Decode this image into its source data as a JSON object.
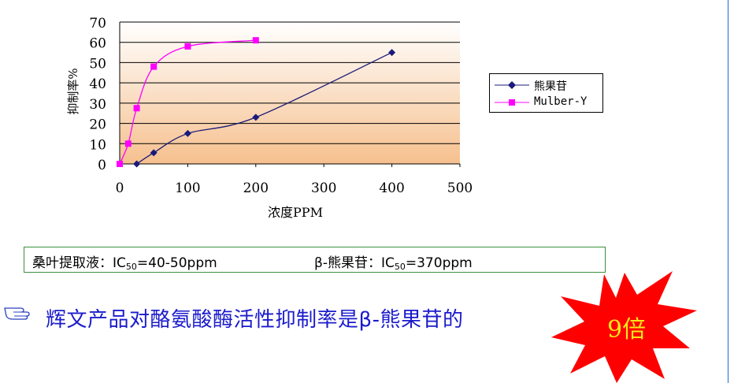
{
  "chart_data": {
    "type": "line",
    "title": "",
    "xlabel": "浓度PPM",
    "ylabel": "抑制率%",
    "xlim": [
      0,
      500
    ],
    "ylim": [
      0,
      70
    ],
    "xticks": [
      "0",
      "100",
      "200",
      "300",
      "400",
      "500"
    ],
    "yticks": [
      "0",
      "10",
      "20",
      "30",
      "40",
      "50",
      "60",
      "70"
    ],
    "grid": "horizontal",
    "legend_position": "right",
    "series": [
      {
        "name": "熊果苷",
        "color": "#1a1a7a",
        "marker": "diamond",
        "x": [
          25,
          50,
          100,
          200,
          400
        ],
        "y": [
          0,
          5.5,
          15,
          23,
          55
        ]
      },
      {
        "name": "Mulber-Y",
        "color": "#ff00ff",
        "marker": "square",
        "x": [
          0,
          12.5,
          25,
          50,
          100,
          200
        ],
        "y": [
          0,
          10,
          27.5,
          48,
          58,
          61
        ]
      }
    ]
  },
  "info": {
    "left_prefix": "桑叶提取液：IC",
    "left_sub": "50",
    "left_suffix": "=40-50ppm",
    "right_prefix": "β-熊果苷：IC",
    "right_sub": "50",
    "right_suffix": "=370ppm"
  },
  "headline": {
    "text": "辉文产品对酪氨酸酶活性抑制率是β-熊果苷的",
    "icon": "pointing-hand-icon"
  },
  "callout": {
    "text": "9倍",
    "color": "#ff0000"
  }
}
